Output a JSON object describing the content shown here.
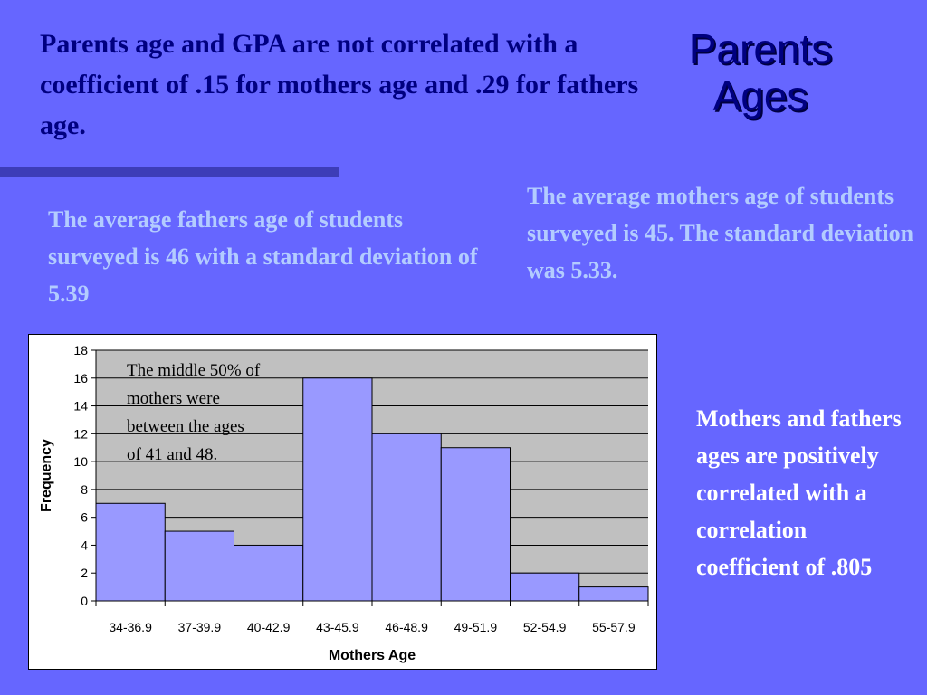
{
  "headline": "Parents age and GPA are not correlated with a coefficient of .15 for mothers age and .29 for fathers age.",
  "title": "Parents Ages",
  "fathers_text": "The average fathers age of students surveyed is 46 with a standard deviation of 5.39",
  "mothers_text": "The average mothers age of students surveyed is 45.  The standard deviation was 5.33.",
  "correlation_text": "Mothers and fathers ages are positively correlated with a correlation coefficient of .805",
  "colors": {
    "background": "#6666ff",
    "bar_fill": "#9999ff",
    "plot_area": "#c0c0c0",
    "headline": "#000080",
    "light_text": "#b3ccff"
  },
  "chart_data": {
    "type": "bar",
    "categories": [
      "34-36.9",
      "37-39.9",
      "40-42.9",
      "43-45.9",
      "46-48.9",
      "49-51.9",
      "52-54.9",
      "55-57.9"
    ],
    "values": [
      7,
      5,
      4,
      16,
      12,
      11,
      2,
      1
    ],
    "xlabel": "Mothers Age",
    "ylabel": "Frequency",
    "ylim": [
      0,
      18
    ],
    "yticks": [
      0,
      2,
      4,
      6,
      8,
      10,
      12,
      14,
      16,
      18
    ],
    "grid": true,
    "legend": "none",
    "annotation": "The middle 50% of mothers were between the ages of 41 and 48."
  }
}
